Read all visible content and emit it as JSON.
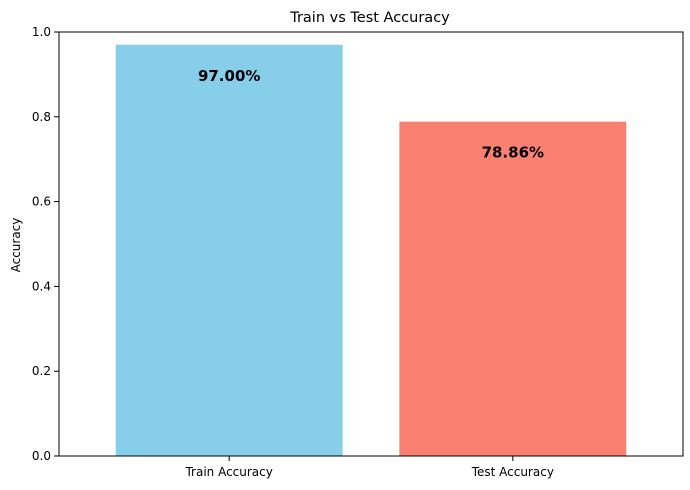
{
  "chart_data": {
    "type": "bar",
    "title": "Train vs Test Accuracy",
    "xlabel": "",
    "ylabel": "Accuracy",
    "categories": [
      "Train Accuracy",
      "Test Accuracy"
    ],
    "values": [
      0.97,
      0.7886
    ],
    "data_labels": [
      "97.00%",
      "78.86%"
    ],
    "colors": [
      "#87ceeb",
      "#fa8072"
    ],
    "ylim": [
      0,
      1.0
    ],
    "yticks": [
      0.0,
      0.2,
      0.4,
      0.6,
      0.8,
      1.0
    ],
    "ytick_labels": [
      "0.0",
      "0.2",
      "0.4",
      "0.6",
      "0.8",
      "1.0"
    ],
    "grid": false,
    "legend": "none"
  }
}
